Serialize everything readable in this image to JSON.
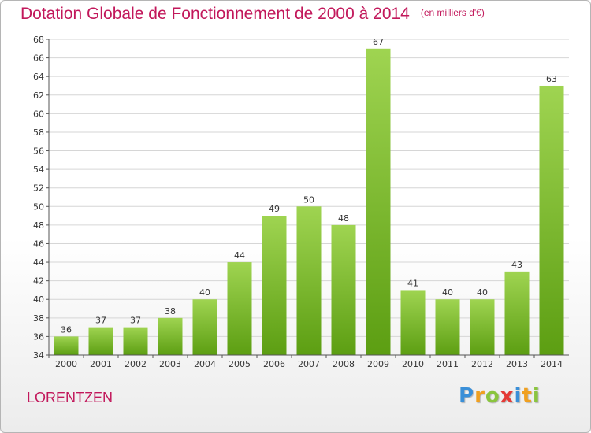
{
  "header": {
    "title": "Dotation Globale de Fonctionnement de 2000 à 2014",
    "unit": "(en milliers d'€)"
  },
  "footer": {
    "commune": "LORENTZEN",
    "logo_letters": [
      {
        "ch": "P",
        "color": "#3a8fd8"
      },
      {
        "ch": "r",
        "color": "#f0a020"
      },
      {
        "ch": "o",
        "color": "#8ac53e"
      },
      {
        "ch": "x",
        "color": "#e53935"
      },
      {
        "ch": "i",
        "color": "#3a8fd8"
      },
      {
        "ch": "t",
        "color": "#f0a020"
      },
      {
        "ch": "i",
        "color": "#8ac53e"
      }
    ]
  },
  "colors": {
    "title": "#c2185b",
    "bar_top": "#9fd451",
    "bar_bottom": "#5c9e12",
    "grid": "#d6d6d6",
    "axis": "#555555",
    "text": "#333333"
  },
  "chart_data": {
    "type": "bar",
    "categories": [
      "2000",
      "2001",
      "2002",
      "2003",
      "2004",
      "2005",
      "2006",
      "2007",
      "2008",
      "2009",
      "2010",
      "2011",
      "2012",
      "2013",
      "2014"
    ],
    "values": [
      36,
      37,
      37,
      38,
      40,
      44,
      49,
      50,
      48,
      67,
      41,
      40,
      40,
      43,
      63
    ],
    "ylim": [
      34,
      68
    ],
    "ytick_step": 2,
    "grid": true,
    "data_labels": true
  }
}
